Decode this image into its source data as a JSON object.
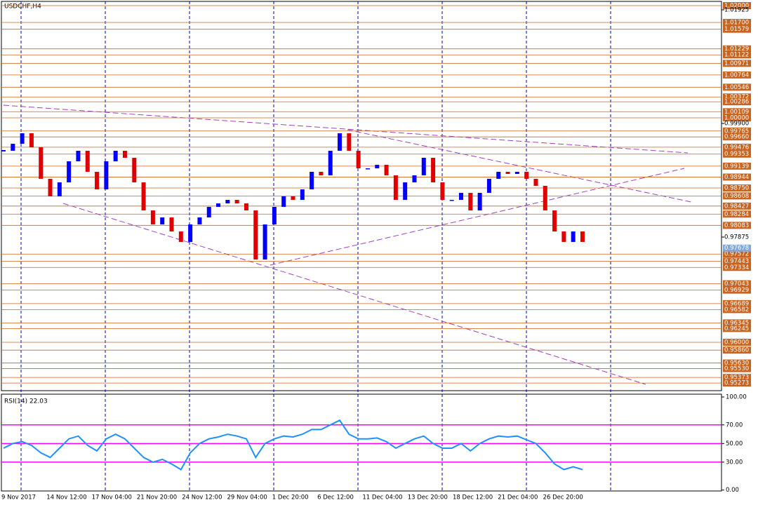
{
  "chart_data": [
    {
      "type": "candlestick",
      "title": "USDCHF,H4",
      "ylim": [
        0.95137,
        1.02075
      ],
      "yticks": [
        {
          "value": 1.01925,
          "label": "1.01925"
        },
        {
          "value": 0.999,
          "label": "0.99900"
        },
        0.97875
      ],
      "levels": [
        {
          "value": 1.02,
          "label": "1.02000"
        },
        {
          "value": 1.017,
          "label": "1.01700"
        },
        1.01579,
        1.01229,
        1.01122,
        1.00971,
        1.00764,
        1.00546,
        1.00372,
        1.00286,
        1.00109,
        {
          "value": 1.0,
          "label": "1.00000"
        },
        0.99765,
        {
          "value": 0.9966,
          "label": "0.99660"
        },
        0.99476,
        0.99353,
        0.99139,
        0.98944,
        {
          "value": 0.9875,
          "label": "0.98750"
        },
        0.98608,
        0.98427,
        0.98284,
        0.98083,
        0.97572,
        0.97443,
        0.97334,
        0.97043,
        0.96929,
        0.96689,
        0.96582,
        0.96345,
        0.96245,
        {
          "value": 0.96,
          "label": "0.96000"
        },
        {
          "value": 0.9586,
          "label": "0.95860"
        },
        {
          "value": 0.9563,
          "label": "0.95630"
        },
        {
          "value": 0.9553,
          "label": "0.95530"
        },
        0.95373,
        0.95273
      ],
      "last_price": 0.97678,
      "colors": {
        "up": "#0000ff",
        "down": "#e00000",
        "level": "#c86420",
        "last": "#7fa7d8"
      },
      "x_labels": [
        "9 Nov 2017",
        "14 Nov 12:00",
        "17 Nov 04:00",
        "21 Nov 20:00",
        "24 Nov 12:00",
        "29 Nov 04:00",
        "1 Dec 20:00",
        "6 Dec 12:00",
        "11 Dec 04:00",
        "13 Dec 20:00",
        "18 Dec 12:00",
        "21 Dec 04:00",
        "26 Dec 20:00"
      ],
      "close": [
        0.99413,
        0.99538,
        0.99725,
        0.99475,
        0.98913,
        0.986,
        0.9885,
        0.99225,
        0.99413,
        0.99038,
        0.98725,
        0.99225,
        0.99413,
        0.99288,
        0.9885,
        0.9835,
        0.981,
        0.98225,
        0.97975,
        0.97788,
        0.981,
        0.98225,
        0.98413,
        0.98475,
        0.98538,
        0.98475,
        0.9835,
        0.97475,
        0.981,
        0.98413,
        0.986,
        0.98538,
        0.98725,
        0.99038,
        0.98975,
        0.99413,
        0.99725,
        0.99413,
        0.991,
        0.991,
        0.99163,
        0.98975,
        0.98538,
        0.9885,
        0.98975,
        0.99288,
        0.9885,
        0.98538,
        0.98538,
        0.98663,
        0.9835,
        0.98663,
        0.98913,
        0.99038,
        0.99,
        0.99038,
        0.98913,
        0.98788,
        0.9835,
        0.97975,
        0.97788,
        0.97975,
        0.97788
      ]
    },
    {
      "type": "line",
      "title": "RSI(14) 22.03",
      "color": "#1e90ff",
      "level_color": "#ff00ff",
      "ylim": [
        -1,
        103
      ],
      "yticks": [
        {
          "value": 100,
          "label": "100.00"
        },
        {
          "value": 70,
          "label": "70.00"
        },
        {
          "value": 50,
          "label": "50.00"
        },
        {
          "value": 30,
          "label": "30.00"
        },
        {
          "value": 0,
          "label": "0.00"
        }
      ],
      "levels": [
        70,
        50,
        30
      ],
      "values": [
        45,
        50,
        52,
        48,
        40,
        35,
        45,
        55,
        58,
        48,
        42,
        55,
        60,
        55,
        45,
        35,
        30,
        33,
        28,
        22,
        40,
        50,
        55,
        57,
        60,
        58,
        55,
        35,
        50,
        55,
        58,
        57,
        60,
        65,
        65,
        70,
        75,
        60,
        55,
        55,
        56,
        52,
        45,
        50,
        55,
        58,
        50,
        45,
        45,
        50,
        42,
        50,
        55,
        58,
        57,
        58,
        54,
        50,
        40,
        28,
        22,
        25,
        22
      ]
    }
  ]
}
